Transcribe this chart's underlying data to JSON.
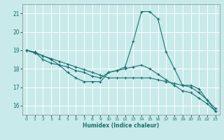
{
  "xlabel": "Humidex (Indice chaleur)",
  "xlim": [
    -0.5,
    23.5
  ],
  "ylim": [
    15.5,
    21.5
  ],
  "yticks": [
    16,
    17,
    18,
    19,
    20,
    21
  ],
  "xticks": [
    0,
    1,
    2,
    3,
    4,
    5,
    6,
    7,
    8,
    9,
    10,
    11,
    12,
    13,
    14,
    15,
    16,
    17,
    18,
    19,
    20,
    21,
    22,
    23
  ],
  "bg_color": "#c8eaea",
  "line_color": "#1a7070",
  "grid_color": "#ffffff",
  "series": [
    {
      "x": [
        0,
        1,
        2,
        3,
        4,
        5,
        6,
        7,
        8,
        9,
        10,
        11,
        12,
        13,
        14,
        15,
        16,
        17,
        18,
        19,
        20,
        21,
        22,
        23
      ],
      "y": [
        19.0,
        18.9,
        18.5,
        18.3,
        18.2,
        17.8,
        17.5,
        17.3,
        17.3,
        17.3,
        17.8,
        17.9,
        18.1,
        19.5,
        21.1,
        21.1,
        20.7,
        18.9,
        18.0,
        17.1,
        17.1,
        16.9,
        16.3,
        15.7
      ]
    },
    {
      "x": [
        0,
        1,
        2,
        3,
        4,
        5,
        6,
        7,
        8,
        9,
        10,
        11,
        12,
        13,
        14,
        15,
        16,
        17,
        18,
        19,
        20,
        21,
        22,
        23
      ],
      "y": [
        19.0,
        18.85,
        18.7,
        18.55,
        18.4,
        18.25,
        18.1,
        17.95,
        17.8,
        17.65,
        17.5,
        17.5,
        17.5,
        17.5,
        17.5,
        17.5,
        17.4,
        17.3,
        17.2,
        17.1,
        17.0,
        16.7,
        16.3,
        15.85
      ]
    },
    {
      "x": [
        0,
        1,
        2,
        3,
        4,
        5,
        6,
        7,
        8,
        9,
        10,
        11,
        12,
        13,
        14,
        15,
        16,
        17,
        18,
        19,
        20,
        21,
        22,
        23
      ],
      "y": [
        19.0,
        18.9,
        18.7,
        18.5,
        18.2,
        18.1,
        17.9,
        17.8,
        17.6,
        17.5,
        17.8,
        17.9,
        18.0,
        18.1,
        18.2,
        18.0,
        17.7,
        17.4,
        17.1,
        16.8,
        16.7,
        16.4,
        16.1,
        15.7
      ]
    }
  ]
}
